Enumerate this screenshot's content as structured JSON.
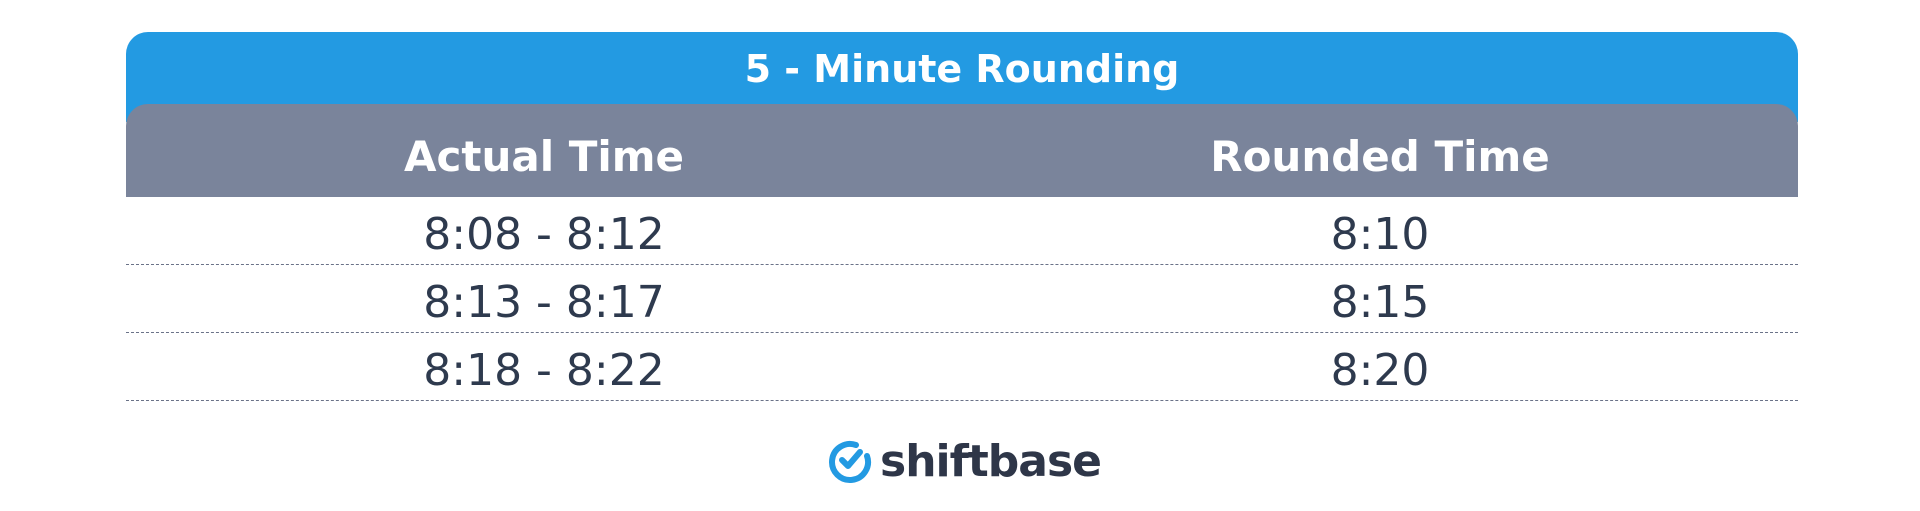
{
  "title": "5 - Minute Rounding",
  "columns": [
    "Actual Time",
    "Rounded Time"
  ],
  "rows": [
    {
      "actual": "8:08 - 8:12",
      "rounded": "8:10"
    },
    {
      "actual": "8:13 - 8:17",
      "rounded": "8:15"
    },
    {
      "actual": "8:18 - 8:22",
      "rounded": "8:20"
    }
  ],
  "logo": {
    "text": "shiftbase",
    "icon": "clock-check-icon",
    "color": "#239ae2"
  },
  "colors": {
    "title_bg": "#239ae2",
    "header_bg": "#7a849b",
    "text": "#2e3a4e"
  }
}
